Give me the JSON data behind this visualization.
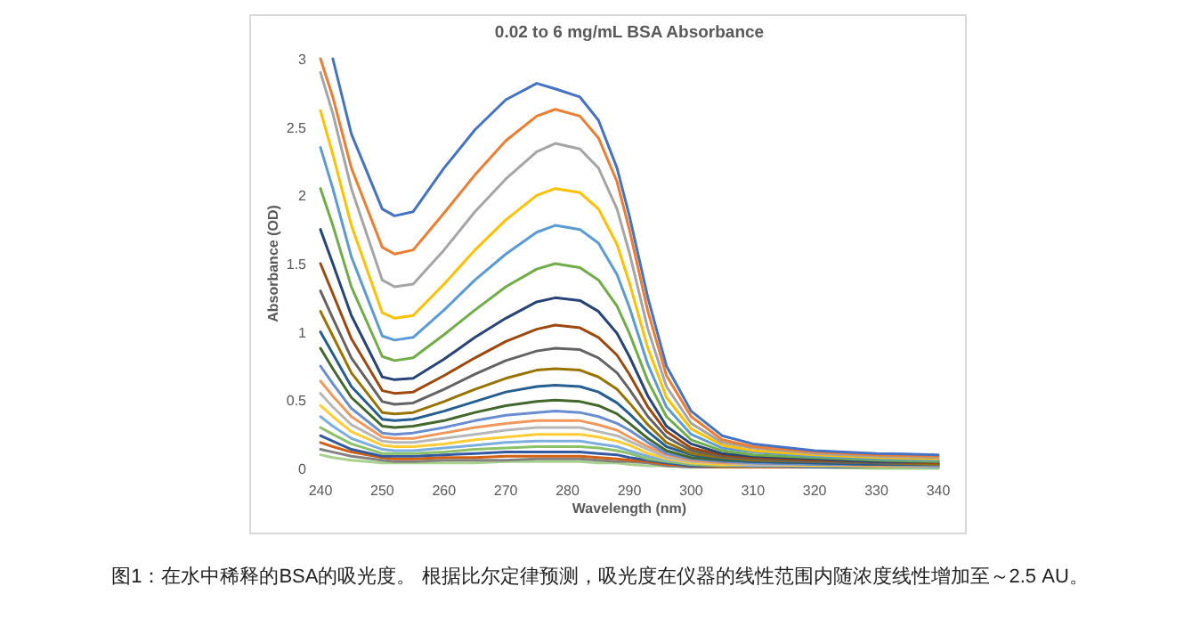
{
  "chart_data": {
    "type": "line",
    "title": "0.02 to 6 mg/mL BSA Absorbance",
    "xlabel": "Wavelength (nm)",
    "ylabel": "Absorbance (OD)",
    "annotations": [
      "图1：在水中稀释的BSA的吸光度。 根据比尔定律预测，吸光度在仪器的线性范围内随浓度线性增加至～2.5 AU。"
    ],
    "xlim": [
      240,
      340
    ],
    "ylim": [
      0,
      3
    ],
    "xticks": [
      240,
      250,
      260,
      270,
      280,
      290,
      300,
      310,
      320,
      330,
      340
    ],
    "yticks": [
      0,
      0.5,
      1,
      1.5,
      2,
      2.5,
      3
    ],
    "x": [
      240,
      242,
      245,
      250,
      252,
      255,
      260,
      265,
      270,
      275,
      278,
      282,
      285,
      288,
      290,
      293,
      296,
      300,
      305,
      310,
      320,
      330,
      340
    ],
    "series": [
      {
        "color": "#4472c4",
        "values": [
          null,
          3.0,
          2.45,
          1.9,
          1.85,
          1.88,
          2.2,
          2.48,
          2.7,
          2.82,
          2.78,
          2.72,
          2.55,
          2.2,
          1.85,
          1.25,
          0.75,
          0.42,
          0.24,
          0.18,
          0.13,
          0.11,
          0.1
        ]
      },
      {
        "color": "#ed7d31",
        "values": [
          3.0,
          2.72,
          2.2,
          1.62,
          1.57,
          1.6,
          1.87,
          2.15,
          2.4,
          2.58,
          2.63,
          2.58,
          2.42,
          2.1,
          1.75,
          1.15,
          0.68,
          0.38,
          0.21,
          0.16,
          0.12,
          0.1,
          0.09
        ]
      },
      {
        "color": "#a5a5a5",
        "values": [
          2.9,
          2.6,
          2.05,
          1.38,
          1.33,
          1.35,
          1.6,
          1.88,
          2.12,
          2.32,
          2.38,
          2.34,
          2.2,
          1.9,
          1.58,
          1.02,
          0.6,
          0.33,
          0.19,
          0.15,
          0.11,
          0.09,
          0.08
        ]
      },
      {
        "color": "#ffc000",
        "values": [
          2.62,
          2.3,
          1.78,
          1.14,
          1.1,
          1.12,
          1.35,
          1.6,
          1.82,
          2.0,
          2.05,
          2.02,
          1.9,
          1.64,
          1.36,
          0.88,
          0.52,
          0.29,
          0.17,
          0.13,
          0.1,
          0.08,
          0.07
        ]
      },
      {
        "color": "#5b9bd5",
        "values": [
          2.35,
          2.05,
          1.55,
          0.97,
          0.94,
          0.96,
          1.16,
          1.38,
          1.57,
          1.73,
          1.78,
          1.75,
          1.65,
          1.42,
          1.18,
          0.76,
          0.45,
          0.25,
          0.15,
          0.12,
          0.09,
          0.07,
          0.06
        ]
      },
      {
        "color": "#70ad47",
        "values": [
          2.05,
          1.78,
          1.33,
          0.82,
          0.79,
          0.81,
          0.98,
          1.16,
          1.33,
          1.46,
          1.5,
          1.47,
          1.38,
          1.19,
          0.99,
          0.64,
          0.38,
          0.21,
          0.13,
          0.1,
          0.08,
          0.06,
          0.05
        ]
      },
      {
        "color": "#264478",
        "values": [
          1.75,
          1.5,
          1.12,
          0.67,
          0.65,
          0.66,
          0.8,
          0.96,
          1.1,
          1.22,
          1.25,
          1.23,
          1.15,
          0.99,
          0.82,
          0.53,
          0.31,
          0.18,
          0.11,
          0.09,
          0.07,
          0.05,
          0.05
        ]
      },
      {
        "color": "#9e480e",
        "values": [
          1.5,
          1.28,
          0.95,
          0.57,
          0.55,
          0.56,
          0.68,
          0.81,
          0.93,
          1.02,
          1.05,
          1.03,
          0.96,
          0.83,
          0.69,
          0.45,
          0.27,
          0.15,
          0.1,
          0.08,
          0.06,
          0.05,
          0.04
        ]
      },
      {
        "color": "#636363",
        "values": [
          1.3,
          1.1,
          0.81,
          0.49,
          0.47,
          0.48,
          0.58,
          0.69,
          0.79,
          0.86,
          0.88,
          0.87,
          0.81,
          0.7,
          0.58,
          0.38,
          0.23,
          0.13,
          0.09,
          0.07,
          0.05,
          0.04,
          0.04
        ]
      },
      {
        "color": "#997300",
        "values": [
          1.15,
          0.97,
          0.7,
          0.41,
          0.4,
          0.41,
          0.49,
          0.58,
          0.66,
          0.72,
          0.73,
          0.72,
          0.67,
          0.58,
          0.48,
          0.32,
          0.19,
          0.11,
          0.08,
          0.06,
          0.05,
          0.04,
          0.03
        ]
      },
      {
        "color": "#255e91",
        "values": [
          1.0,
          0.84,
          0.6,
          0.36,
          0.35,
          0.36,
          0.42,
          0.49,
          0.56,
          0.6,
          0.61,
          0.6,
          0.56,
          0.48,
          0.4,
          0.27,
          0.16,
          0.1,
          0.07,
          0.05,
          0.04,
          0.03,
          0.03
        ]
      },
      {
        "color": "#43682b",
        "values": [
          0.88,
          0.73,
          0.52,
          0.31,
          0.3,
          0.31,
          0.35,
          0.41,
          0.46,
          0.49,
          0.5,
          0.49,
          0.46,
          0.4,
          0.33,
          0.22,
          0.13,
          0.08,
          0.06,
          0.05,
          0.04,
          0.03,
          0.03
        ]
      },
      {
        "color": "#698ed0",
        "values": [
          0.75,
          0.62,
          0.44,
          0.26,
          0.25,
          0.26,
          0.3,
          0.35,
          0.39,
          0.41,
          0.42,
          0.41,
          0.38,
          0.33,
          0.28,
          0.19,
          0.11,
          0.07,
          0.05,
          0.04,
          0.03,
          0.03,
          0.02
        ]
      },
      {
        "color": "#f1975a",
        "values": [
          0.64,
          0.53,
          0.38,
          0.23,
          0.22,
          0.22,
          0.26,
          0.3,
          0.33,
          0.35,
          0.35,
          0.35,
          0.32,
          0.28,
          0.23,
          0.16,
          0.1,
          0.06,
          0.04,
          0.04,
          0.03,
          0.02,
          0.02
        ]
      },
      {
        "color": "#b7b7b7",
        "values": [
          0.55,
          0.45,
          0.32,
          0.2,
          0.19,
          0.19,
          0.22,
          0.25,
          0.28,
          0.3,
          0.3,
          0.3,
          0.27,
          0.24,
          0.2,
          0.14,
          0.08,
          0.05,
          0.04,
          0.03,
          0.03,
          0.02,
          0.02
        ]
      },
      {
        "color": "#ffcd33",
        "values": [
          0.46,
          0.38,
          0.27,
          0.17,
          0.16,
          0.16,
          0.18,
          0.21,
          0.23,
          0.25,
          0.25,
          0.25,
          0.23,
          0.2,
          0.17,
          0.11,
          0.07,
          0.04,
          0.03,
          0.03,
          0.02,
          0.02,
          0.02
        ]
      },
      {
        "color": "#7cafdd",
        "values": [
          0.38,
          0.31,
          0.22,
          0.14,
          0.13,
          0.13,
          0.15,
          0.17,
          0.19,
          0.2,
          0.2,
          0.2,
          0.18,
          0.16,
          0.13,
          0.09,
          0.06,
          0.04,
          0.03,
          0.02,
          0.02,
          0.02,
          0.01
        ]
      },
      {
        "color": "#8cc168",
        "values": [
          0.3,
          0.25,
          0.18,
          0.11,
          0.11,
          0.11,
          0.12,
          0.14,
          0.15,
          0.16,
          0.16,
          0.16,
          0.15,
          0.13,
          0.11,
          0.07,
          0.05,
          0.03,
          0.02,
          0.02,
          0.02,
          0.01,
          0.01
        ]
      },
      {
        "color": "#335aa1",
        "values": [
          0.24,
          0.2,
          0.14,
          0.09,
          0.09,
          0.09,
          0.1,
          0.11,
          0.12,
          0.12,
          0.12,
          0.12,
          0.11,
          0.1,
          0.08,
          0.06,
          0.04,
          0.02,
          0.02,
          0.02,
          0.01,
          0.01,
          0.01
        ]
      },
      {
        "color": "#d26012",
        "values": [
          0.19,
          0.16,
          0.12,
          0.08,
          0.07,
          0.07,
          0.08,
          0.08,
          0.09,
          0.09,
          0.09,
          0.09,
          0.08,
          0.07,
          0.06,
          0.05,
          0.03,
          0.02,
          0.01,
          0.01,
          0.01,
          0.01,
          0.01
        ]
      },
      {
        "color": "#828282",
        "values": [
          0.14,
          0.12,
          0.09,
          0.06,
          0.05,
          0.05,
          0.06,
          0.06,
          0.06,
          0.07,
          0.07,
          0.07,
          0.06,
          0.05,
          0.05,
          0.04,
          0.02,
          0.01,
          0.01,
          0.01,
          0.01,
          0.01,
          0.01
        ]
      },
      {
        "color": "#a9d18e",
        "values": [
          0.1,
          0.08,
          0.06,
          0.04,
          0.04,
          0.04,
          0.04,
          0.04,
          0.05,
          0.05,
          0.05,
          0.05,
          0.04,
          0.04,
          0.03,
          0.02,
          0.02,
          0.01,
          0.01,
          0.01,
          0.01,
          0.0,
          0.0
        ]
      }
    ]
  }
}
